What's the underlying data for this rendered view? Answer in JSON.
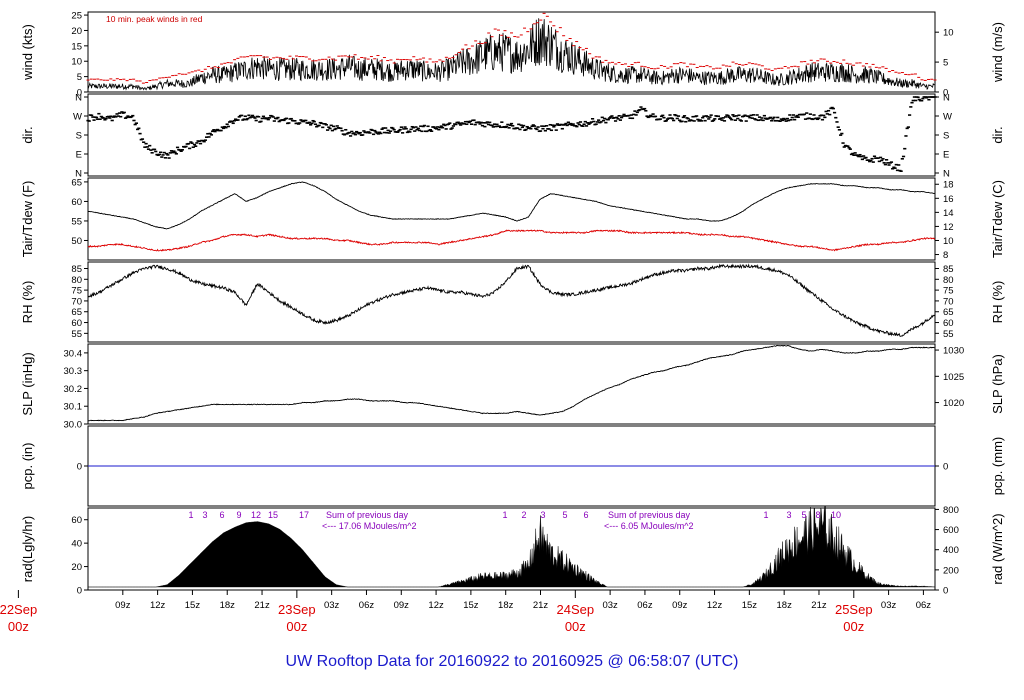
{
  "title": "UW Rooftop Data for 20160922  to  20160925 @ 06:58:07  (UTC)",
  "colors": {
    "main": "#000000",
    "peak": "#dd0000",
    "dew": "#dd0000",
    "pcp": "#1a1acc",
    "annot": "#8800bb",
    "title": "#1a1acc",
    "day": "#dd0000"
  },
  "chart_data": {
    "type": "line",
    "x_axis": {
      "start": "2016-09-22 06:00 UTC",
      "end": "2016-09-25 07:00 UTC",
      "tick_labels": [
        "09z",
        "12z",
        "15z",
        "18z",
        "21z",
        "03z",
        "06z",
        "09z",
        "12z",
        "15z",
        "18z",
        "21z",
        "03z",
        "06z",
        "09z",
        "12z",
        "15z",
        "18z",
        "21z",
        "03z",
        "06z"
      ],
      "day_labels": [
        {
          "date": "22Sep",
          "sub": "00z"
        },
        {
          "date": "23Sep",
          "sub": "00z"
        },
        {
          "date": "24Sep",
          "sub": "00z"
        },
        {
          "date": "25Sep",
          "sub": "00z"
        }
      ]
    },
    "panels": [
      {
        "id": "wind",
        "left_label": "wind (kts)",
        "right_label": "wind (m/s)",
        "ylim": [
          0,
          26
        ],
        "left_ticks": [
          "0",
          "5",
          "10",
          "15",
          "20",
          "25"
        ],
        "right_ticks": [
          "0",
          "5",
          "10"
        ],
        "annotation": "10 min. peak winds in red",
        "series": [
          {
            "values": [
              2,
              2,
              2,
              2,
              2,
              1,
              2,
              3,
              3,
              3,
              5,
              6,
              6,
              7,
              8,
              9,
              8,
              8,
              8,
              8,
              8,
              8,
              8,
              9,
              8,
              8,
              8,
              7,
              8,
              8,
              7,
              7,
              8,
              10,
              11,
              13,
              14,
              14,
              13,
              15,
              19,
              17,
              14,
              12,
              10,
              8,
              7,
              6,
              6,
              6,
              5,
              5,
              6,
              6,
              5,
              5,
              5,
              6,
              6,
              6,
              5,
              4,
              5,
              6,
              7,
              7,
              7,
              7,
              6,
              6,
              5,
              4,
              3,
              3,
              2,
              2
            ]
          },
          {
            "values": [
              4,
              4,
              4,
              4,
              4,
              3,
              4,
              5,
              6,
              6,
              7,
              8,
              9,
              10,
              11,
              12,
              11,
              11,
              11,
              11,
              11,
              11,
              11,
              12,
              11,
              11,
              11,
              10,
              11,
              11,
              10,
              10,
              11,
              14,
              15,
              17,
              19,
              19,
              18,
              21,
              25,
              23,
              19,
              16,
              14,
              11,
              10,
              9,
              9,
              9,
              8,
              8,
              9,
              9,
              8,
              8,
              8,
              9,
              9,
              9,
              8,
              7,
              8,
              9,
              10,
              10,
              10,
              10,
              9,
              9,
              8,
              7,
              6,
              6,
              4,
              4
            ]
          }
        ]
      },
      {
        "id": "dir",
        "left_label": "dir.",
        "right_label": "dir.",
        "left_ticks": [
          "N",
          "W",
          "S",
          "E",
          "N"
        ],
        "right_ticks": [
          "N",
          "W",
          "S",
          "E",
          "N"
        ],
        "series": [
          {
            "values": [
              260,
              270,
              255,
              275,
              265,
              130,
              100,
              80,
              110,
              130,
              150,
              190,
              220,
              255,
              262,
              255,
              260,
              250,
              248,
              240,
              235,
              220,
              210,
              190,
              190,
              195,
              198,
              200,
              205,
              210,
              210,
              215,
              222,
              230,
              240,
              235,
              230,
              228,
              220,
              215,
              210,
              215,
              220,
              230,
              235,
              245,
              255,
              260,
              265,
              300,
              265,
              260,
              262,
              255,
              258,
              260,
              255,
              265,
              260,
              262,
              258,
              250,
              262,
              268,
              270,
              265,
              300,
              130,
              80,
              60,
              70,
              40,
              20,
              350,
              355,
              360
            ]
          }
        ]
      },
      {
        "id": "temp",
        "left_label": "Tair/Tdew (F)",
        "right_label": "Tair/Tdew (C)",
        "ylim": [
          45,
          66
        ],
        "left_ticks": [
          "50",
          "55",
          "60",
          "65"
        ],
        "right_ticks": [
          "8",
          "10",
          "12",
          "14",
          "16",
          "18"
        ],
        "series": [
          {
            "values": [
              57.5,
              57,
              56.5,
              56,
              55.5,
              54.5,
              53.5,
              53,
              54,
              55.5,
              57.5,
              59,
              60.5,
              62,
              60,
              61,
              62.5,
              63.5,
              64.5,
              65,
              64,
              62.5,
              60.5,
              59,
              57.5,
              56.5,
              56,
              55.5,
              55.5,
              55.5,
              55.5,
              55.5,
              55.5,
              56,
              56.5,
              57,
              56.5,
              56,
              55,
              56,
              60.5,
              62,
              61.5,
              61,
              60.5,
              60,
              59,
              58.5,
              58,
              57.5,
              57,
              56.5,
              56,
              55.5,
              55.5,
              55,
              55,
              56,
              57.5,
              59.5,
              61,
              62.5,
              63.5,
              64,
              64.5,
              64.5,
              64.5,
              64,
              64,
              63.5,
              63.5,
              63,
              63,
              62.5,
              62.5,
              62
            ]
          },
          {
            "values": [
              48.5,
              48.5,
              49,
              49,
              48.5,
              48,
              47.5,
              47.5,
              48,
              48.5,
              49.5,
              50,
              51,
              51.5,
              51.5,
              51,
              51.5,
              51,
              50.5,
              50.5,
              50.5,
              50.5,
              50,
              50,
              49.5,
              49,
              49,
              49.5,
              49.5,
              49.5,
              49.5,
              49,
              49.5,
              50,
              50.5,
              51,
              51.5,
              52.5,
              52.5,
              52.5,
              52.5,
              52,
              52,
              52,
              52,
              52.5,
              52.5,
              52.5,
              52,
              52,
              52,
              52,
              52,
              52,
              51.5,
              51.5,
              51.5,
              51,
              51,
              50.5,
              50,
              49.5,
              49,
              48.5,
              48.5,
              48,
              47.5,
              48,
              48.5,
              49,
              49,
              49.5,
              49.5,
              50,
              50.5,
              50.5
            ]
          }
        ]
      },
      {
        "id": "rh",
        "left_label": "RH (%)",
        "right_label": "RH (%)",
        "ylim": [
          51,
          88
        ],
        "left_ticks": [
          "55",
          "60",
          "65",
          "70",
          "75",
          "80",
          "85"
        ],
        "right_ticks": [
          "55",
          "60",
          "65",
          "70",
          "75",
          "80",
          "85"
        ],
        "series": [
          {
            "values": [
              72,
              74,
              77,
              80,
              83,
              85,
              86,
              85,
              83,
              80,
              78,
              77,
              76,
              74,
              68,
              78,
              74,
              70,
              67,
              64,
              61,
              60,
              61,
              63,
              66,
              69,
              71,
              73,
              74,
              75,
              76,
              75,
              74,
              74,
              73,
              72,
              74,
              79,
              85,
              86,
              78,
              74,
              73,
              73,
              74,
              75,
              76,
              77,
              78,
              80,
              82,
              83,
              84,
              84,
              85,
              85,
              86,
              86,
              86,
              86,
              85,
              84,
              82,
              78,
              74,
              70,
              66,
              63,
              60,
              58,
              56,
              55,
              54,
              57,
              60,
              64
            ]
          }
        ]
      },
      {
        "id": "slp",
        "left_label": "SLP (inHg)",
        "right_label": "SLP (hPa)",
        "ylim": [
          30.0,
          30.45
        ],
        "left_ticks": [
          "30.0",
          "30.1",
          "30.2",
          "30.3",
          "30.4"
        ],
        "right_ticks": [
          "1020",
          "1025",
          "1030"
        ],
        "series": [
          {
            "values": [
              30.02,
              30.02,
              30.02,
              30.02,
              30.03,
              30.04,
              30.06,
              30.07,
              30.08,
              30.09,
              30.1,
              30.11,
              30.11,
              30.11,
              30.11,
              30.11,
              30.11,
              30.11,
              30.11,
              30.12,
              30.12,
              30.13,
              30.13,
              30.14,
              30.14,
              30.13,
              30.13,
              30.13,
              30.12,
              30.12,
              30.11,
              30.1,
              30.09,
              30.08,
              30.07,
              30.06,
              30.06,
              30.06,
              30.07,
              30.06,
              30.05,
              30.06,
              30.07,
              30.1,
              30.14,
              30.17,
              30.2,
              30.22,
              30.25,
              30.27,
              30.29,
              30.3,
              30.32,
              30.33,
              30.35,
              30.37,
              30.38,
              30.39,
              30.41,
              30.42,
              30.43,
              30.44,
              30.44,
              30.42,
              30.41,
              30.42,
              30.41,
              30.4,
              30.4,
              30.41,
              30.41,
              30.42,
              30.42,
              30.43,
              30.43,
              30.43
            ]
          }
        ]
      },
      {
        "id": "pcp",
        "left_label": "pcp. (in)",
        "right_label": "pcp. (mm)",
        "left_ticks": [
          "0"
        ],
        "right_ticks": [
          "0"
        ],
        "series": [
          {
            "values": [
              0,
              0
            ]
          }
        ]
      },
      {
        "id": "rad",
        "left_label": "rad(Lgly/hr)",
        "right_label": "rad (W/m^2)",
        "ylim": [
          0,
          70
        ],
        "left_ticks": [
          "0",
          "20",
          "40",
          "60"
        ],
        "right_ticks": [
          "0",
          "200",
          "400",
          "600",
          "800"
        ],
        "day_hours": [
          [
            "1",
            "3",
            "6",
            "9",
            "12",
            "15",
            "17"
          ],
          [
            "1",
            "2",
            "3",
            "5",
            "6"
          ],
          [
            "1",
            "3",
            "5",
            "8",
            "10"
          ]
        ],
        "day_notes": [
          {
            "line1": "Sum of previous day",
            "line2": "<--- 17.06 MJoules/m^2"
          },
          {
            "line1": "Sum of previous day",
            "line2": "<--- 6.05 MJoules/m^2"
          }
        ],
        "series": [
          {
            "values": [
              0,
              0,
              0,
              0,
              0,
              0,
              0,
              2,
              10,
              20,
              30,
              40,
              48,
              53,
              57,
              58,
              56,
              51,
              43,
              33,
              21,
              9,
              2,
              0,
              0,
              0,
              0,
              0,
              0,
              0,
              0,
              0,
              3,
              6,
              9,
              12,
              12,
              13,
              16,
              25,
              60,
              38,
              30,
              22,
              14,
              6,
              0,
              0,
              0,
              0,
              0,
              0,
              0,
              0,
              0,
              0,
              0,
              0,
              0,
              4,
              14,
              30,
              45,
              55,
              65,
              70,
              58,
              40,
              24,
              12,
              4,
              2,
              1,
              1,
              1,
              0
            ]
          }
        ]
      }
    ]
  }
}
